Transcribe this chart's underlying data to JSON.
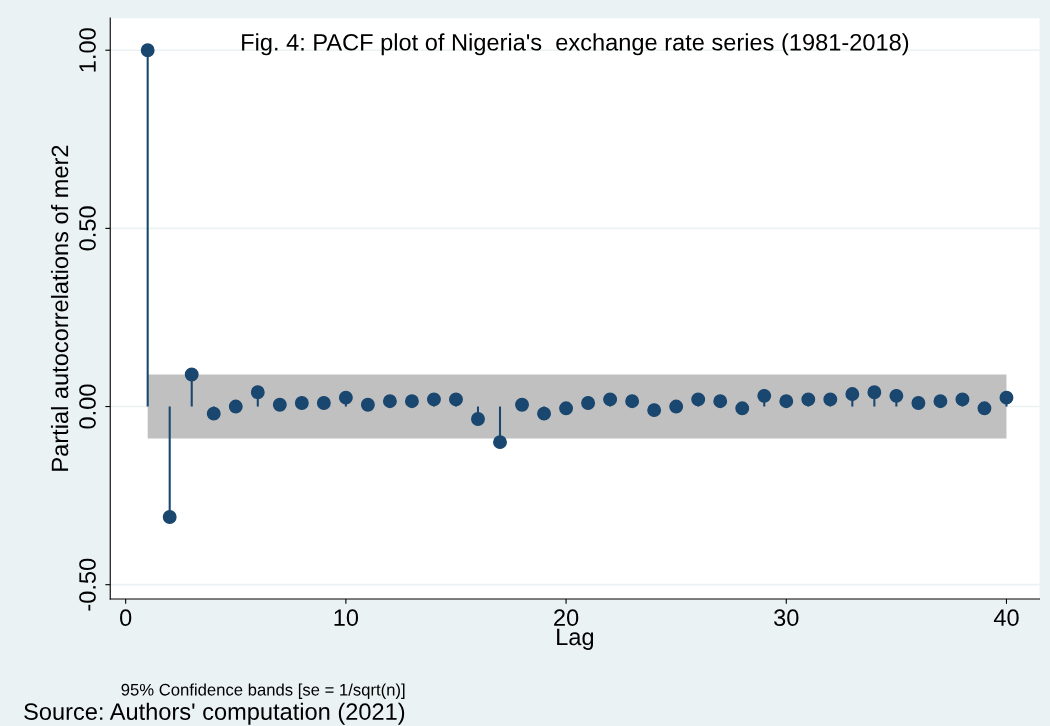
{
  "chart_data": {
    "type": "lollipop",
    "title": "Fig. 4: PACF plot of Nigeria's  exchange rate series (1981-2018)",
    "xlabel": "Lag",
    "ylabel": "Partial autocorrelations of mer2",
    "annotations": [
      "95% Confidence bands [se = 1/sqrt(n)]",
      "Source: Authors' computation (2021)"
    ],
    "x": [
      1,
      2,
      3,
      4,
      5,
      6,
      7,
      8,
      9,
      10,
      11,
      12,
      13,
      14,
      15,
      16,
      17,
      18,
      19,
      20,
      21,
      22,
      23,
      24,
      25,
      26,
      27,
      28,
      29,
      30,
      31,
      32,
      33,
      34,
      35,
      36,
      37,
      38,
      39,
      40
    ],
    "series": [
      {
        "color": "#1a476f",
        "values": [
          1.0,
          -0.31,
          0.09,
          -0.02,
          0.0,
          0.04,
          0.005,
          0.01,
          0.01,
          0.025,
          0.005,
          0.015,
          0.015,
          0.02,
          0.02,
          -0.035,
          -0.1,
          0.005,
          -0.02,
          -0.005,
          0.01,
          0.02,
          0.015,
          -0.01,
          0.0,
          0.02,
          0.015,
          -0.005,
          0.03,
          0.015,
          0.02,
          0.02,
          0.035,
          0.04,
          0.03,
          0.01,
          0.015,
          0.02,
          -0.005,
          0.025
        ]
      }
    ],
    "bands": [
      {
        "axis": "y",
        "from": -0.09,
        "to": 0.09,
        "color": "#c0c0c0"
      }
    ],
    "xlim": [
      -0.7,
      41.5
    ],
    "ylim": [
      -0.54,
      1.09
    ],
    "xticks": [
      0,
      10,
      20,
      30,
      40
    ],
    "yticks": [
      {
        "value": -0.5,
        "label": "-0.50"
      },
      {
        "value": 0.0,
        "label": "0.00"
      },
      {
        "value": 0.5,
        "label": "0.50"
      },
      {
        "value": 1.0,
        "label": "1.00"
      }
    ],
    "grid": "y",
    "marker": "circle"
  }
}
